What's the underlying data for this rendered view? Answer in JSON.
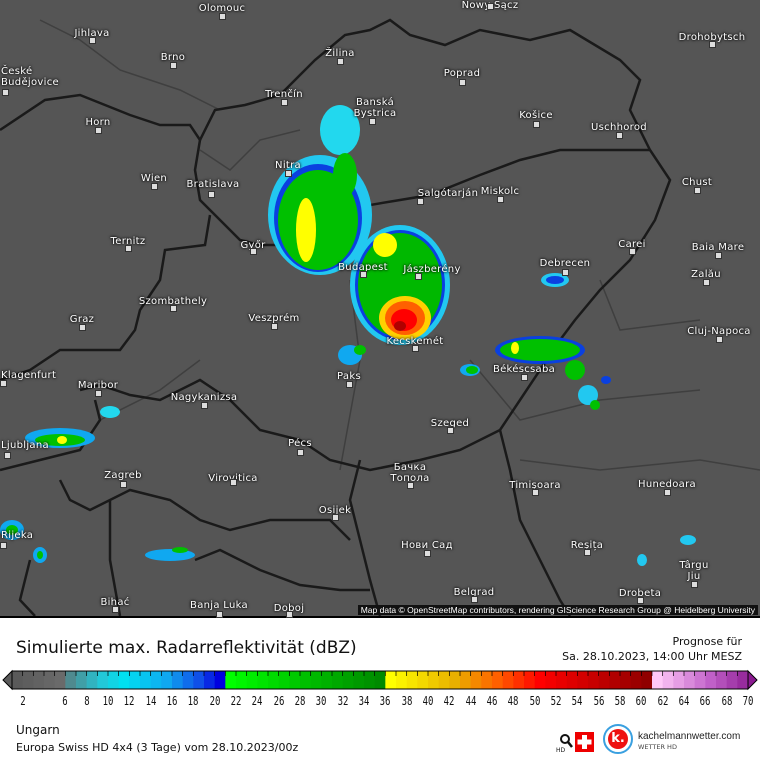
{
  "map": {
    "cities": [
      "Olomouc",
      "Nowy Sącz",
      "Jihlava",
      "Brno",
      "Žilina",
      "Drohobytsch",
      "České Budějovice",
      "Poprad",
      "Trenčín",
      "Banská Bystrica",
      "Horn",
      "Košice",
      "Uschhorod",
      "Nitra",
      "Wien",
      "Bratislava",
      "Salgótarján",
      "Miskolc",
      "Chust",
      "Ternitz",
      "Győr",
      "Budapest",
      "Jászberény",
      "Carei",
      "Baia Mare",
      "Debrecen",
      "Zalău",
      "Graz",
      "Szombathely",
      "Veszprém",
      "Kecskemét",
      "Cluj-Napoca",
      "Békéscsaba",
      "Paks",
      "Maribor",
      "Klagenfurt",
      "Nagykanizsa",
      "Ljubljana",
      "Szeged",
      "Pécs",
      "Zagreb",
      "Virovitica",
      "Бачка Топола",
      "Hunedoara",
      "Timișoara",
      "Osijek",
      "Rijeka",
      "Нови Сад",
      "Reșița",
      "Târgu Jiu",
      "Bihać",
      "Banja Luka",
      "Doboj",
      "Belgrad",
      "Drobeta"
    ],
    "attribution": "Map data © OpenStreetMap contributors, rendering GIScience Research Group @ Heidelberg University"
  },
  "legend": {
    "title": "Simulierte max. Radarreflektivität (dBZ)",
    "forecast_label": "Prognose für",
    "forecast_time": "Sa. 28.10.2023, 14:00 Uhr MESZ",
    "ticks": [
      "2",
      "6",
      "8",
      "10",
      "12",
      "14",
      "16",
      "18",
      "20",
      "22",
      "24",
      "26",
      "28",
      "30",
      "32",
      "34",
      "36",
      "38",
      "40",
      "42",
      "44",
      "46",
      "48",
      "50",
      "52",
      "54",
      "56",
      "58",
      "60",
      "62",
      "64",
      "66",
      "68",
      "70"
    ],
    "color_stops": [
      {
        "dbz": 1,
        "color": "#5a5a5a"
      },
      {
        "dbz": 5,
        "color": "#6a6a6a"
      },
      {
        "dbz": 6,
        "color": "#4f8a8f"
      },
      {
        "dbz": 9,
        "color": "#22c8d8"
      },
      {
        "dbz": 11,
        "color": "#00e0f0"
      },
      {
        "dbz": 15,
        "color": "#10a8f0"
      },
      {
        "dbz": 18,
        "color": "#1050e8"
      },
      {
        "dbz": 20,
        "color": "#0000e0"
      },
      {
        "dbz": 21,
        "color": "#00ff00"
      },
      {
        "dbz": 28,
        "color": "#00c000"
      },
      {
        "dbz": 35,
        "color": "#008a00"
      },
      {
        "dbz": 36,
        "color": "#ffff00"
      },
      {
        "dbz": 42,
        "color": "#e8b000"
      },
      {
        "dbz": 46,
        "color": "#ff6000"
      },
      {
        "dbz": 50,
        "color": "#ff0000"
      },
      {
        "dbz": 60,
        "color": "#900000"
      },
      {
        "dbz": 61,
        "color": "#ffc8f8"
      },
      {
        "dbz": 66,
        "color": "#c060c8"
      },
      {
        "dbz": 70,
        "color": "#8a1a90"
      }
    ]
  },
  "footer": {
    "region": "Ungarn",
    "model": "Europa Swiss HD 4x4 (3 Tage) vom  28.10.2023/00z",
    "swiss_hd": "SWISS HD",
    "brand": "kachelmannwetter.com",
    "brand_sub": "WETTER HD",
    "brand_logo": "k."
  }
}
